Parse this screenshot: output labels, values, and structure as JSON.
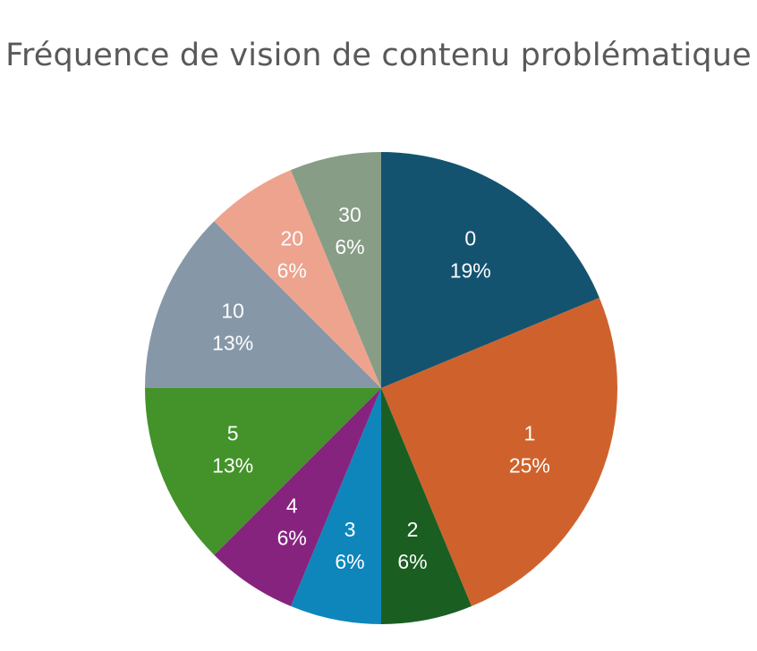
{
  "chart_data": {
    "type": "pie",
    "title": "Fréquence de vision de contenu problématique",
    "categories": [
      "0",
      "1",
      "2",
      "3",
      "4",
      "5",
      "10",
      "20",
      "30"
    ],
    "values": [
      3,
      4,
      1,
      1,
      1,
      2,
      2,
      1,
      1
    ],
    "percent_labels": [
      "19%",
      "25%",
      "6%",
      "6%",
      "6%",
      "13%",
      "13%",
      "6%",
      "6%"
    ],
    "colors": [
      "#145370",
      "#CF622C",
      "#1A5E22",
      "#0E86BB",
      "#86237F",
      "#43922A",
      "#8698A8",
      "#EDA38E",
      "#879D86"
    ],
    "start_angle": "12 o'clock",
    "direction": "clockwise",
    "legend": "none",
    "label_position": "inside"
  }
}
